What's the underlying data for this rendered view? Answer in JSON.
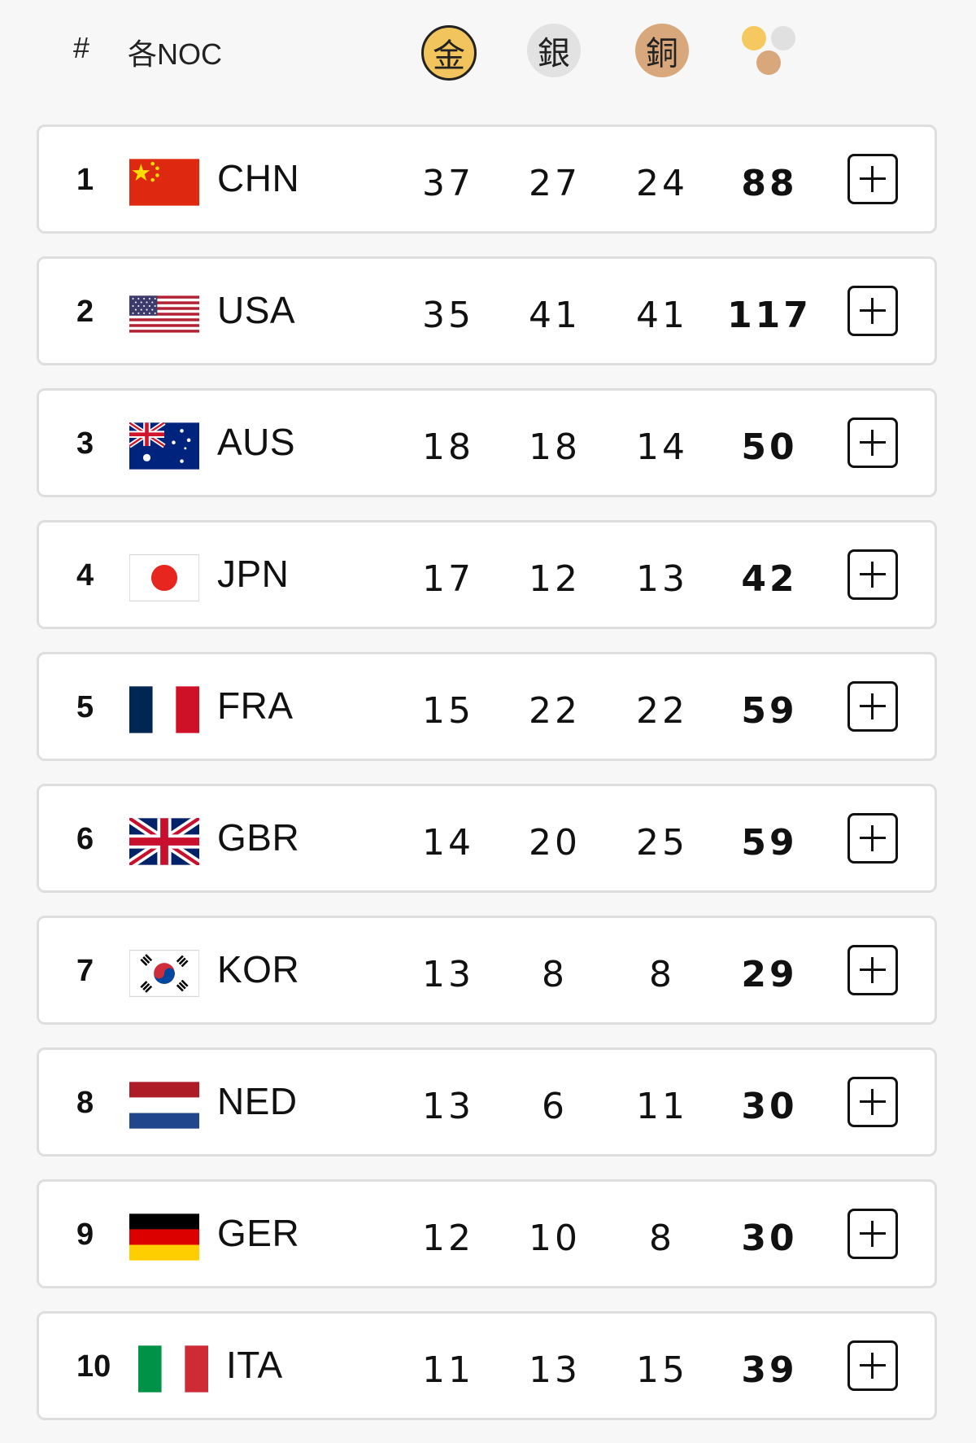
{
  "header": {
    "rank_label": "#",
    "noc_label": "各NOC",
    "gold_label": "金",
    "silver_label": "銀",
    "bronze_label": "銅",
    "total_icon": "medal-total-icon"
  },
  "colors": {
    "gold": "#f2c45e",
    "silver": "#e2e2e2",
    "bronze": "#d8a77c",
    "row_border": "#dedede"
  },
  "rows": [
    {
      "rank": "1",
      "noc": "CHN",
      "flag": "china-flag",
      "gold": "37",
      "silver": "27",
      "bronze": "24",
      "total": "88"
    },
    {
      "rank": "2",
      "noc": "USA",
      "flag": "usa-flag",
      "gold": "35",
      "silver": "41",
      "bronze": "41",
      "total": "117"
    },
    {
      "rank": "3",
      "noc": "AUS",
      "flag": "australia-flag",
      "gold": "18",
      "silver": "18",
      "bronze": "14",
      "total": "50"
    },
    {
      "rank": "4",
      "noc": "JPN",
      "flag": "japan-flag",
      "gold": "17",
      "silver": "12",
      "bronze": "13",
      "total": "42"
    },
    {
      "rank": "5",
      "noc": "FRA",
      "flag": "france-flag",
      "gold": "15",
      "silver": "22",
      "bronze": "22",
      "total": "59"
    },
    {
      "rank": "6",
      "noc": "GBR",
      "flag": "uk-flag",
      "gold": "14",
      "silver": "20",
      "bronze": "25",
      "total": "59"
    },
    {
      "rank": "7",
      "noc": "KOR",
      "flag": "korea-flag",
      "gold": "13",
      "silver": "8",
      "bronze": "8",
      "total": "29"
    },
    {
      "rank": "8",
      "noc": "NED",
      "flag": "netherlands-flag",
      "gold": "13",
      "silver": "6",
      "bronze": "11",
      "total": "30"
    },
    {
      "rank": "9",
      "noc": "GER",
      "flag": "germany-flag",
      "gold": "12",
      "silver": "10",
      "bronze": "8",
      "total": "30"
    },
    {
      "rank": "10",
      "noc": "ITA",
      "flag": "italy-flag",
      "gold": "11",
      "silver": "13",
      "bronze": "15",
      "total": "39"
    }
  ],
  "expand_icon": "plus-icon"
}
